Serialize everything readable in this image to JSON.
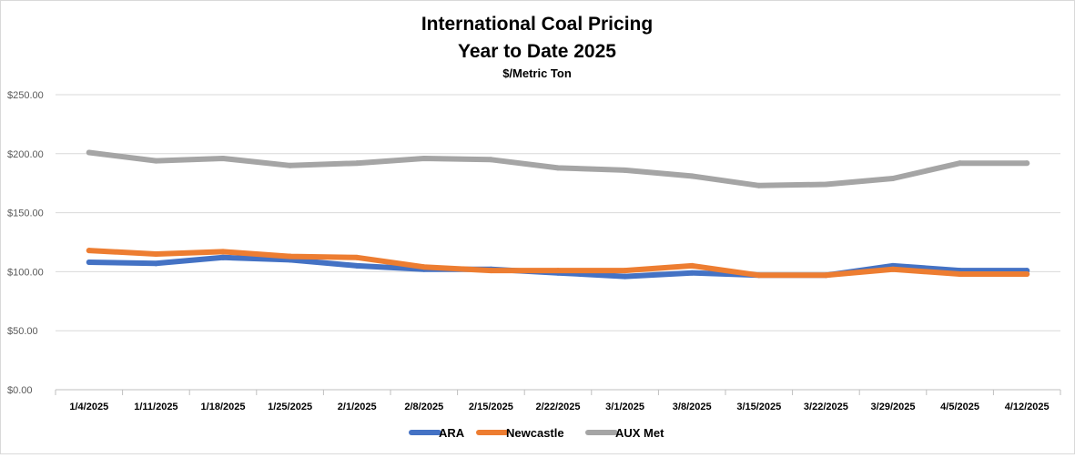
{
  "chart_data": {
    "type": "line",
    "title_lines": [
      "International Coal Pricing",
      "Year to Date 2025"
    ],
    "subtitle": "$/Metric Ton",
    "xlabel": "",
    "ylabel": "",
    "categories": [
      "1/4/2025",
      "1/11/2025",
      "1/18/2025",
      "1/25/2025",
      "2/1/2025",
      "2/8/2025",
      "2/15/2025",
      "2/22/2025",
      "3/1/2025",
      "3/8/2025",
      "3/15/2025",
      "3/22/2025",
      "3/29/2025",
      "4/5/2025",
      "4/12/2025"
    ],
    "ylim": [
      0,
      250
    ],
    "yticks": [
      {
        "value": 0,
        "label": "$0.00"
      },
      {
        "value": 50,
        "label": "$50.00"
      },
      {
        "value": 100,
        "label": "$100.00"
      },
      {
        "value": 150,
        "label": "$150.00"
      },
      {
        "value": 200,
        "label": "$200.00"
      },
      {
        "value": 250,
        "label": "$250.00"
      }
    ],
    "grid": true,
    "legend_position": "bottom",
    "series": [
      {
        "name": "ARA",
        "color": "#4472c4",
        "values": [
          108,
          107,
          112,
          110,
          105,
          102,
          102,
          99,
          96,
          99,
          97,
          97,
          105,
          101,
          101
        ]
      },
      {
        "name": "Newcastle",
        "color": "#ed7d31",
        "values": [
          118,
          115,
          117,
          113,
          112,
          104,
          101,
          101,
          101,
          105,
          97,
          97,
          102,
          98,
          98
        ]
      },
      {
        "name": "AUX Met",
        "color": "#a5a5a5",
        "values": [
          201,
          194,
          196,
          190,
          192,
          196,
          195,
          188,
          186,
          181,
          173,
          174,
          179,
          192,
          192
        ]
      }
    ]
  }
}
